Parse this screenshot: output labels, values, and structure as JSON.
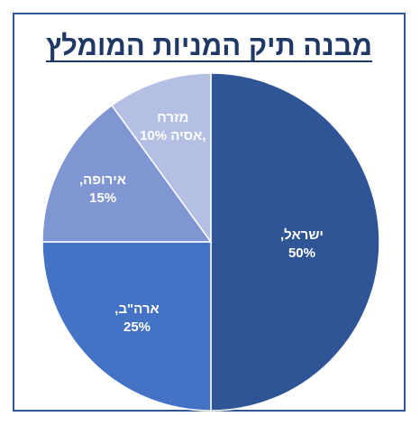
{
  "chart_data": {
    "type": "pie",
    "title": "מבנה תיק המניות המומלץ",
    "start_angle_deg": 0,
    "direction": "clockwise",
    "slices": [
      {
        "label": "ישראל,",
        "value": 50,
        "value_text": "50%",
        "color": "#2f5597",
        "text_color": "#ffffff"
      },
      {
        "label": "ארה\"ב,",
        "value": 25,
        "value_text": "25%",
        "color": "#4472c4",
        "text_color": "#ffffff"
      },
      {
        "label": "אירופה,",
        "value": 15,
        "value_text": "15%",
        "color": "#7f96d3",
        "text_color": "#ffffff"
      },
      {
        "label": "מזרח אסיה,",
        "value": 10,
        "value_text": "10%",
        "color": "#b4c0e3",
        "text_color": "#ffffff"
      }
    ],
    "border_color": "#2f5597",
    "title_color": "#1f3864"
  }
}
